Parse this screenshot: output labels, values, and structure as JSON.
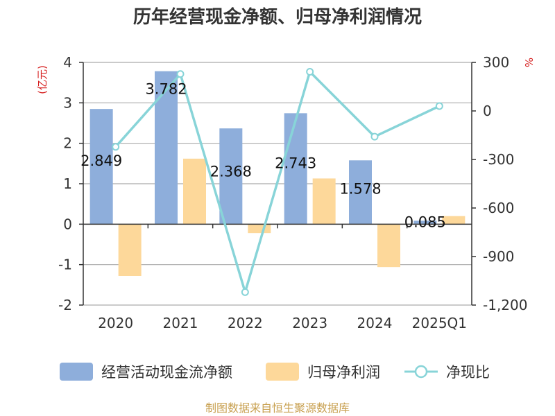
{
  "title": "历年经营现金净额、归母净利润情况",
  "source": "制图数据来自恒生聚源数据库",
  "colors": {
    "cash": "#8eaedb",
    "profit": "#fdd89a",
    "ratio": "#88d4d8",
    "axis": "#333333",
    "grid": "#aaaaaa",
    "unit": "#d62020",
    "source": "#c8a050"
  },
  "chart_data": {
    "type": "bar",
    "categories": [
      "2020",
      "2021",
      "2022",
      "2023",
      "2024",
      "2025Q1"
    ],
    "left_axis": {
      "unit": "(亿元)",
      "ylim": [
        -2,
        4
      ],
      "ticks": [
        4,
        3,
        2,
        1,
        0,
        -1,
        -2
      ],
      "tick_labels": [
        "4",
        "3",
        "2",
        "1",
        "0",
        "-1",
        "-2"
      ]
    },
    "right_axis": {
      "unit": "%",
      "ylim": [
        -1200,
        300
      ],
      "ticks": [
        300,
        0,
        -300,
        -600,
        -900,
        -1200
      ],
      "tick_labels": [
        "300",
        "0",
        "-300",
        "-600",
        "-900",
        "-1,200"
      ]
    },
    "series": [
      {
        "name": "经营活动现金流净额",
        "type": "bar",
        "axis": "left",
        "values": [
          2.849,
          3.782,
          2.368,
          2.743,
          1.578,
          0.085
        ],
        "labels": [
          "2.849",
          "3.782",
          "2.368",
          "2.743",
          "1.578",
          "0.085"
        ]
      },
      {
        "name": "归母净利润",
        "type": "bar",
        "axis": "left",
        "values": [
          -1.28,
          1.62,
          -0.22,
          1.13,
          -1.06,
          0.2
        ]
      },
      {
        "name": "净现比",
        "type": "line",
        "axis": "right",
        "values": [
          -222,
          228,
          -1120,
          242,
          -159,
          30
        ]
      }
    ],
    "legend": [
      "经营活动现金流净额",
      "归母净利润",
      "净现比"
    ]
  }
}
